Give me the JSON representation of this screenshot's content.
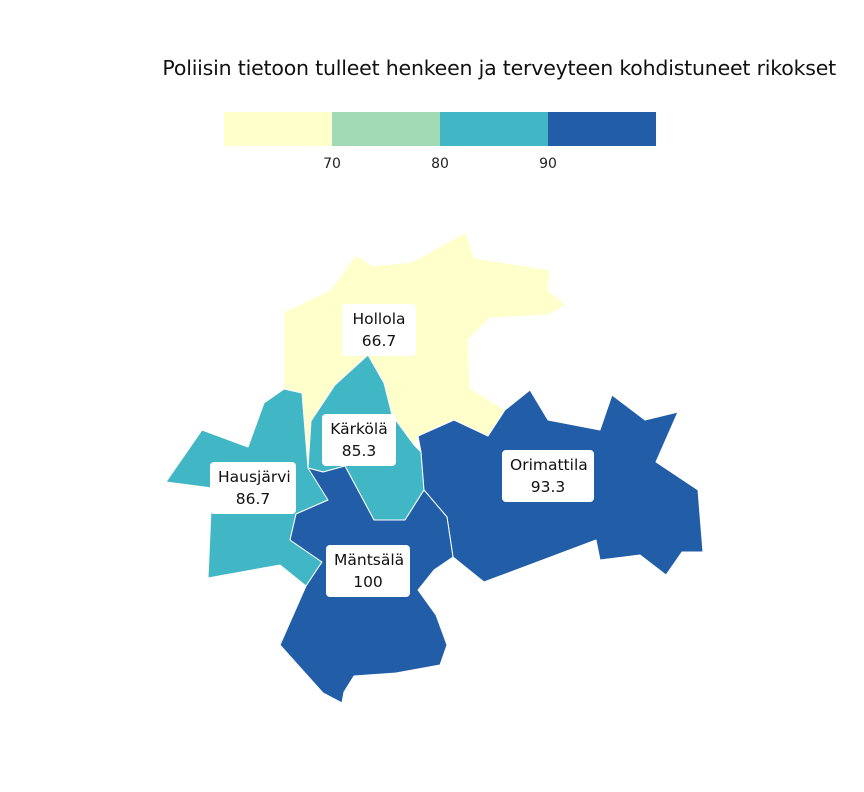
{
  "title": "Poliisin tietoon tulleet henkeen ja terveyteen kohdistuneet rikokset",
  "legend": {
    "bins": [
      {
        "color": "#ffffcc"
      },
      {
        "color": "#a1dab4"
      },
      {
        "color": "#41b6c4"
      },
      {
        "color": "#225ea8"
      }
    ],
    "ticks": [
      "70",
      "80",
      "90"
    ]
  },
  "regions": [
    {
      "name": "Hollola",
      "value": "66.7",
      "color": "#ffffcc"
    },
    {
      "name": "Kärkölä",
      "value": "85.3",
      "color": "#41b6c4"
    },
    {
      "name": "Hausjärvi",
      "value": "86.7",
      "color": "#41b6c4"
    },
    {
      "name": "Orimattila",
      "value": "93.3",
      "color": "#225ea8"
    },
    {
      "name": "Mäntsälä",
      "value": "100",
      "color": "#225ea8"
    }
  ]
}
